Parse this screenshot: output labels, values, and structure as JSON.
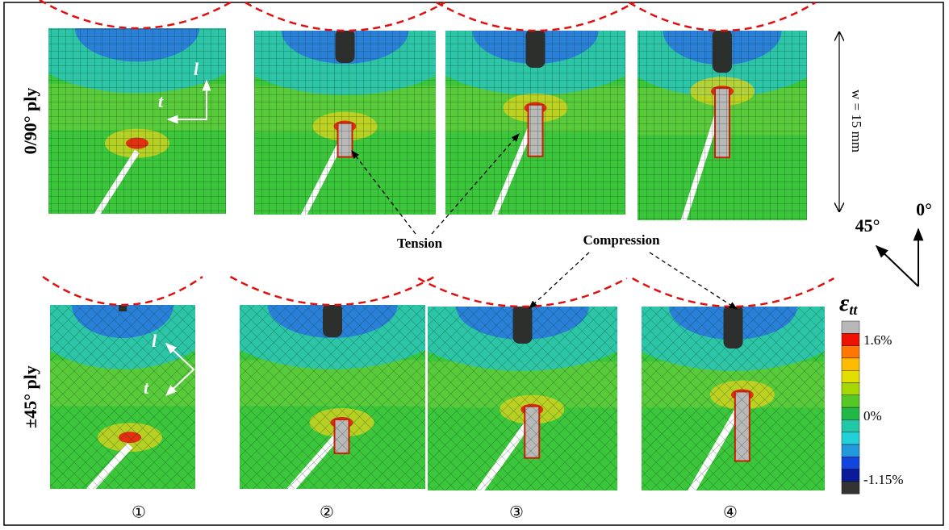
{
  "row_labels": [
    "0/90° ply",
    "±45° ply"
  ],
  "panel_labels": [
    "①",
    "②",
    "③",
    "④"
  ],
  "axis_labels": {
    "top": {
      "l": "l",
      "t": "t"
    },
    "bottom": {
      "l": "l",
      "t": "t"
    }
  },
  "annotations": {
    "tension": "Tension",
    "compression": "Compression",
    "width": "w = 15 mm",
    "angle_45": "45°",
    "angle_0": "0°"
  },
  "legend": {
    "title": "ε",
    "title_sub": "tt",
    "ticks": [
      "1.6%",
      "0%",
      "-1.15%"
    ]
  }
}
